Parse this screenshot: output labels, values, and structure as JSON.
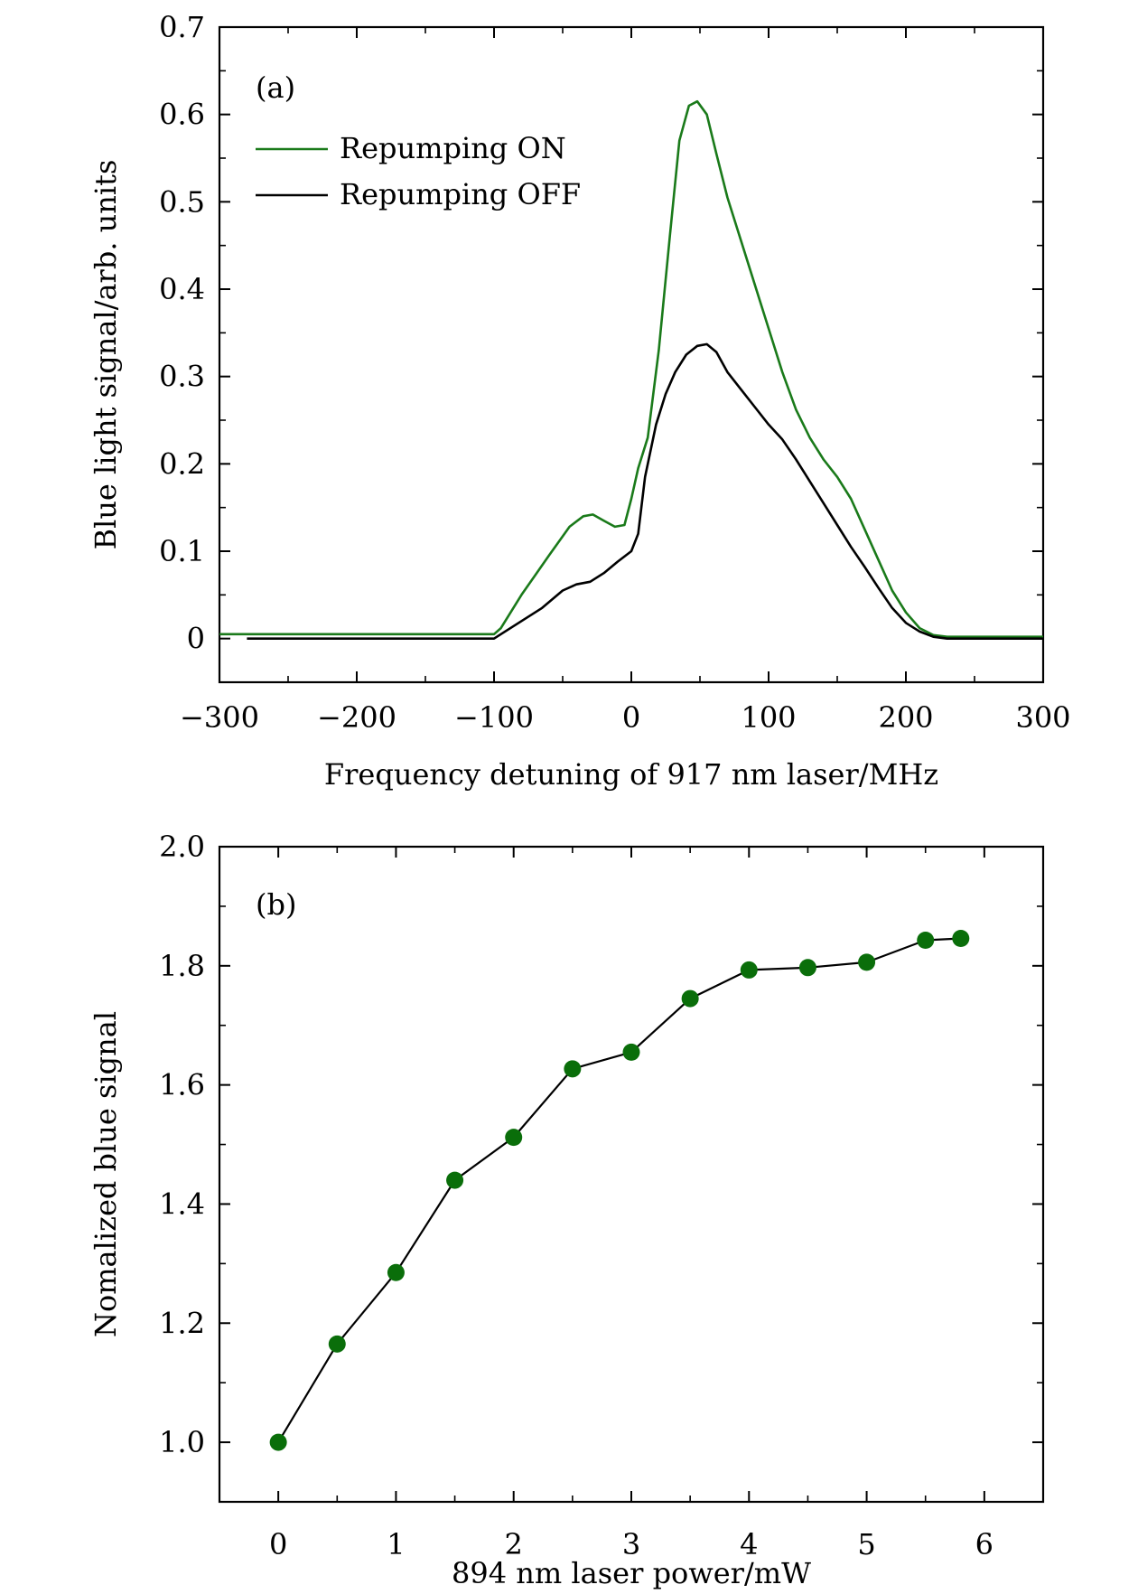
{
  "chart_data": [
    {
      "type": "line",
      "panel_label": "(a)",
      "xlabel": "Frequency detuning of  917 nm laser/MHz",
      "ylabel": "Blue light signal/arb. units",
      "xlim": [
        -300,
        300
      ],
      "ylim": [
        -0.05,
        0.7
      ],
      "x_ticks": [
        -300,
        -200,
        -100,
        0,
        100,
        200,
        300
      ],
      "x_tick_labels": [
        "−300",
        "−200",
        "−100",
        "0",
        "100",
        "200",
        "300"
      ],
      "y_ticks": [
        0,
        0.1,
        0.2,
        0.3,
        0.4,
        0.5,
        0.6,
        0.7
      ],
      "y_tick_labels": [
        "0",
        "0.1",
        "0.2",
        "0.3",
        "0.4",
        "0.5",
        "0.6",
        "0.7"
      ],
      "grid": false,
      "legend_position": "top-left",
      "series": [
        {
          "name": "Repumping ON",
          "color": "#1a7a1a",
          "x": [
            -300,
            -100,
            -95,
            -80,
            -60,
            -45,
            -35,
            -28,
            -20,
            -12,
            -5,
            0,
            5,
            12,
            20,
            28,
            35,
            42,
            48,
            55,
            62,
            70,
            80,
            90,
            100,
            110,
            120,
            130,
            140,
            150,
            160,
            170,
            180,
            190,
            200,
            210,
            220,
            230,
            300
          ],
          "y": [
            0.005,
            0.005,
            0.012,
            0.05,
            0.095,
            0.128,
            0.14,
            0.142,
            0.135,
            0.128,
            0.13,
            0.16,
            0.195,
            0.23,
            0.33,
            0.46,
            0.57,
            0.61,
            0.615,
            0.6,
            0.555,
            0.505,
            0.455,
            0.405,
            0.355,
            0.305,
            0.262,
            0.23,
            0.205,
            0.185,
            0.16,
            0.125,
            0.09,
            0.055,
            0.03,
            0.012,
            0.004,
            0.002,
            0.002
          ]
        },
        {
          "name": "Repumping OFF",
          "color": "#000000",
          "x": [
            -280,
            -100,
            -95,
            -80,
            -65,
            -50,
            -40,
            -30,
            -20,
            -10,
            0,
            5,
            10,
            18,
            25,
            32,
            40,
            48,
            55,
            62,
            70,
            80,
            90,
            100,
            110,
            120,
            130,
            140,
            150,
            160,
            170,
            180,
            190,
            200,
            210,
            220,
            230,
            300
          ],
          "y": [
            0,
            0,
            0.005,
            0.02,
            0.035,
            0.055,
            0.062,
            0.065,
            0.075,
            0.088,
            0.1,
            0.12,
            0.185,
            0.245,
            0.28,
            0.305,
            0.325,
            0.335,
            0.337,
            0.328,
            0.305,
            0.285,
            0.265,
            0.245,
            0.228,
            0.205,
            0.18,
            0.155,
            0.13,
            0.105,
            0.082,
            0.058,
            0.035,
            0.018,
            0.008,
            0.002,
            0,
            0
          ]
        }
      ]
    },
    {
      "type": "line",
      "panel_label": "(b)",
      "xlabel": "894 nm laser power/mW",
      "ylabel": "Nomalized blue signal",
      "xlim": [
        -0.5,
        6.5
      ],
      "ylim": [
        0.9,
        2.0
      ],
      "x_ticks": [
        0,
        1,
        2,
        3,
        4,
        5,
        6
      ],
      "x_tick_labels": [
        "0",
        "1",
        "2",
        "3",
        "4",
        "5",
        "6"
      ],
      "y_ticks": [
        1.0,
        1.2,
        1.4,
        1.6,
        1.8,
        2.0
      ],
      "y_tick_labels": [
        "1.0",
        "1.2",
        "1.4",
        "1.6",
        "1.8",
        "2.0"
      ],
      "grid": false,
      "series": [
        {
          "color": "#0a6e0a",
          "x": [
            0,
            0.5,
            1.0,
            1.5,
            2.0,
            2.5,
            3.0,
            3.5,
            4.0,
            4.5,
            5.0,
            5.5,
            5.8
          ],
          "y": [
            1.0,
            1.165,
            1.285,
            1.44,
            1.512,
            1.627,
            1.655,
            1.745,
            1.793,
            1.797,
            1.806,
            1.843,
            1.846
          ]
        }
      ]
    }
  ]
}
